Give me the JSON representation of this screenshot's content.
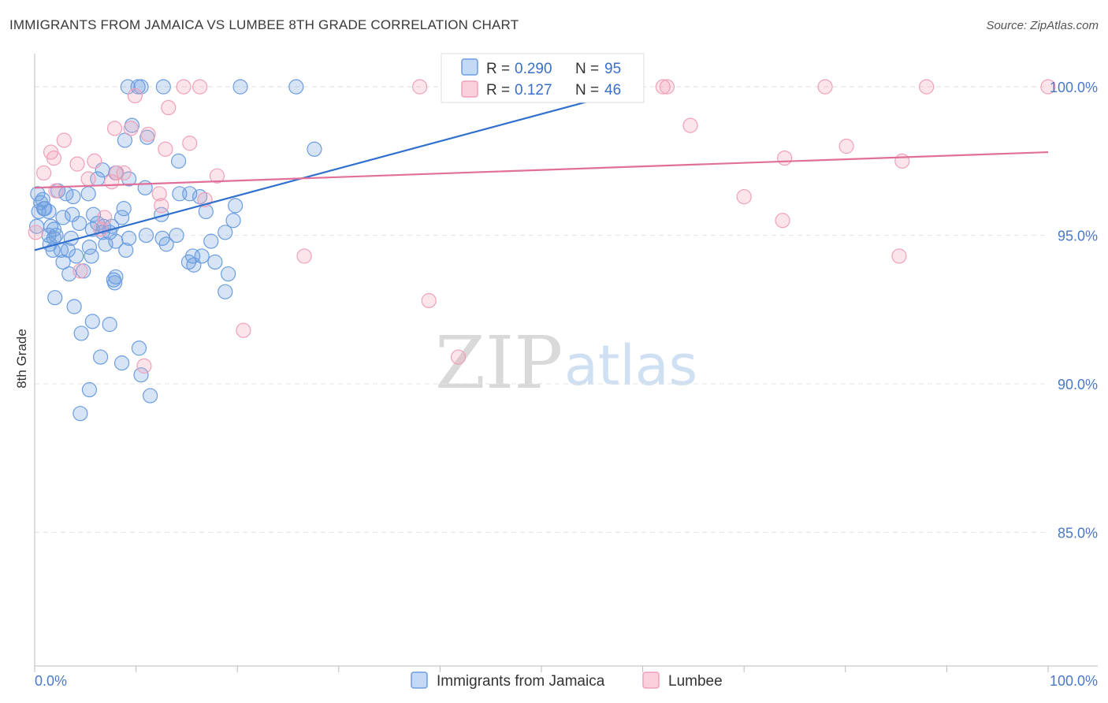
{
  "header": {
    "title": "IMMIGRANTS FROM JAMAICA VS LUMBEE 8TH GRADE CORRELATION CHART",
    "source": "Source: ZipAtlas.com"
  },
  "colors": {
    "blue": "#6b9de0",
    "blue_line": "#2f6fce",
    "pink": "#f0a0b8",
    "pink_line": "#e0709a",
    "grid": "#e3e3e3",
    "axis_label": "#4a78c8"
  },
  "legend": {
    "r_label": "R =",
    "n_label": "N =",
    "blue_r": "0.290",
    "blue_n": "95",
    "pink_r": "0.127",
    "pink_n": "46"
  },
  "watermark": {
    "zip": "ZIP",
    "atlas": "atlas"
  },
  "chart_data": {
    "type": "scatter",
    "title": "IMMIGRANTS FROM JAMAICA VS LUMBEE 8TH GRADE CORRELATION CHART",
    "xlabel": "",
    "ylabel": "8th Grade",
    "xlim": [
      0,
      100
    ],
    "ylim": [
      80.5,
      100.8
    ],
    "x_tick_labels": [
      "0.0%",
      "100.0%"
    ],
    "y_ticks": [
      85,
      90,
      95,
      100
    ],
    "y_tick_labels": [
      "85.0%",
      "90.0%",
      "95.0%",
      "100.0%"
    ],
    "legend_placement": "top-center",
    "series": [
      {
        "name": "Immigrants from Jamaica",
        "r": 0.29,
        "n": 95,
        "trend": {
          "x": [
            0,
            60
          ],
          "y": [
            94.5,
            100
          ]
        },
        "points": [
          [
            9.2,
            100
          ],
          [
            10.2,
            100
          ],
          [
            10.5,
            100
          ],
          [
            12.7,
            100
          ],
          [
            20.3,
            100
          ],
          [
            25.8,
            100
          ],
          [
            9.6,
            98.7
          ],
          [
            11.1,
            98.3
          ],
          [
            8.9,
            98.2
          ],
          [
            27.6,
            97.9
          ],
          [
            14.2,
            97.5
          ],
          [
            6.7,
            97.2
          ],
          [
            8.0,
            97.1
          ],
          [
            6.2,
            96.9
          ],
          [
            9.3,
            96.9
          ],
          [
            10.9,
            96.6
          ],
          [
            0.3,
            96.4
          ],
          [
            2.3,
            96.5
          ],
          [
            3.1,
            96.4
          ],
          [
            5.3,
            96.4
          ],
          [
            14.3,
            96.4
          ],
          [
            15.3,
            96.4
          ],
          [
            3.8,
            96.3
          ],
          [
            0.6,
            96.1
          ],
          [
            0.9,
            95.9
          ],
          [
            19.8,
            96.0
          ],
          [
            0.4,
            95.8
          ],
          [
            1.4,
            95.8
          ],
          [
            3.7,
            95.7
          ],
          [
            5.8,
            95.7
          ],
          [
            8.6,
            95.6
          ],
          [
            12.5,
            95.7
          ],
          [
            16.9,
            95.8
          ],
          [
            2.8,
            95.6
          ],
          [
            19.6,
            95.5
          ],
          [
            0.2,
            95.3
          ],
          [
            1.9,
            95.2
          ],
          [
            5.7,
            95.2
          ],
          [
            6.8,
            95.3
          ],
          [
            7.6,
            95.3
          ],
          [
            1.4,
            95.0
          ],
          [
            7.4,
            95.1
          ],
          [
            18.8,
            95.1
          ],
          [
            1.9,
            94.9
          ],
          [
            3.6,
            94.9
          ],
          [
            9.3,
            94.9
          ],
          [
            12.6,
            94.9
          ],
          [
            14.0,
            95.0
          ],
          [
            8.0,
            94.8
          ],
          [
            17.4,
            94.8
          ],
          [
            1.5,
            94.7
          ],
          [
            7.0,
            94.7
          ],
          [
            5.4,
            94.6
          ],
          [
            1.8,
            94.5
          ],
          [
            2.6,
            94.5
          ],
          [
            3.3,
            94.5
          ],
          [
            9.0,
            94.5
          ],
          [
            4.1,
            94.3
          ],
          [
            5.6,
            94.3
          ],
          [
            15.6,
            94.3
          ],
          [
            16.5,
            94.3
          ],
          [
            2.8,
            94.1
          ],
          [
            15.2,
            94.1
          ],
          [
            15.7,
            94.0
          ],
          [
            4.8,
            93.8
          ],
          [
            3.4,
            93.7
          ],
          [
            19.1,
            93.7
          ],
          [
            8.0,
            93.6
          ],
          [
            7.8,
            93.5
          ],
          [
            7.9,
            93.4
          ],
          [
            18.8,
            93.1
          ],
          [
            2.0,
            92.9
          ],
          [
            3.9,
            92.6
          ],
          [
            5.7,
            92.1
          ],
          [
            7.4,
            92.0
          ],
          [
            4.6,
            91.7
          ],
          [
            10.3,
            91.2
          ],
          [
            6.5,
            90.9
          ],
          [
            8.6,
            90.7
          ],
          [
            10.5,
            90.3
          ],
          [
            5.4,
            89.8
          ],
          [
            11.4,
            89.6
          ],
          [
            4.5,
            89.0
          ],
          [
            0.8,
            96.2
          ],
          [
            1.0,
            95.9
          ],
          [
            1.6,
            95.3
          ],
          [
            2.1,
            95.0
          ],
          [
            4.4,
            95.4
          ],
          [
            6.2,
            95.4
          ],
          [
            8.8,
            95.9
          ],
          [
            11.0,
            95.0
          ],
          [
            13.0,
            94.7
          ],
          [
            16.3,
            96.3
          ],
          [
            17.8,
            94.1
          ],
          [
            6.7,
            95.1
          ]
        ]
      },
      {
        "name": "Lumbee",
        "r": 0.127,
        "n": 46,
        "trend": {
          "x": [
            0,
            100
          ],
          "y": [
            96.6,
            97.8
          ]
        },
        "points": [
          [
            14.7,
            100
          ],
          [
            16.3,
            100
          ],
          [
            38.0,
            100
          ],
          [
            62.0,
            100
          ],
          [
            62.4,
            100
          ],
          [
            78.0,
            100
          ],
          [
            88.0,
            100
          ],
          [
            100,
            100
          ],
          [
            9.9,
            99.7
          ],
          [
            13.2,
            99.3
          ],
          [
            7.9,
            98.6
          ],
          [
            9.5,
            98.6
          ],
          [
            11.2,
            98.4
          ],
          [
            2.9,
            98.2
          ],
          [
            12.9,
            97.9
          ],
          [
            15.3,
            98.1
          ],
          [
            64.7,
            98.7
          ],
          [
            80.1,
            98.0
          ],
          [
            1.6,
            97.8
          ],
          [
            1.9,
            97.6
          ],
          [
            4.2,
            97.4
          ],
          [
            5.9,
            97.5
          ],
          [
            74.0,
            97.6
          ],
          [
            85.6,
            97.5
          ],
          [
            8.1,
            97.1
          ],
          [
            8.8,
            97.1
          ],
          [
            0.9,
            97.1
          ],
          [
            18.0,
            97.0
          ],
          [
            5.3,
            96.9
          ],
          [
            7.6,
            96.8
          ],
          [
            2.1,
            96.5
          ],
          [
            12.3,
            96.4
          ],
          [
            16.8,
            96.2
          ],
          [
            70.0,
            96.3
          ],
          [
            12.5,
            96.0
          ],
          [
            6.9,
            95.6
          ],
          [
            73.8,
            95.5
          ],
          [
            6.5,
            95.2
          ],
          [
            0.1,
            95.1
          ],
          [
            26.6,
            94.3
          ],
          [
            85.3,
            94.3
          ],
          [
            4.5,
            93.8
          ],
          [
            38.9,
            92.8
          ],
          [
            20.6,
            91.8
          ],
          [
            41.8,
            90.9
          ],
          [
            10.8,
            90.6
          ]
        ]
      }
    ]
  },
  "bottom_legend": {
    "series1": "Immigrants from Jamaica",
    "series2": "Lumbee"
  }
}
